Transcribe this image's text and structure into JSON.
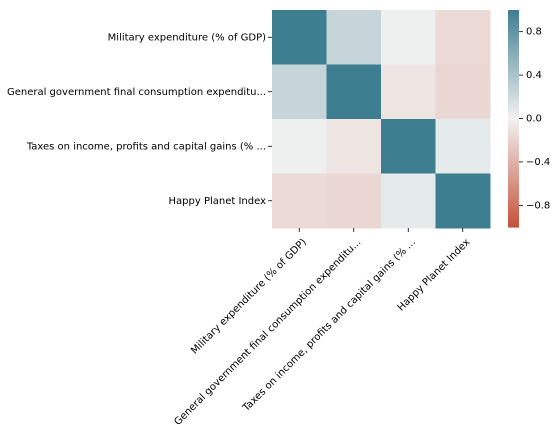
{
  "chart_data": {
    "type": "heatmap",
    "row_labels": [
      "Military expenditure (% of GDP)",
      "General government final consumption expenditu...",
      "Taxes on income, profits and capital gains (% ...",
      "Happy Planet Index"
    ],
    "col_labels": [
      "Military expenditure (% of GDP)",
      "General government final consumption expenditu...",
      "Taxes on income, profits and capital gains (% ...",
      "Happy Planet Index"
    ],
    "values": [
      [
        1.0,
        0.25,
        0.02,
        -0.15
      ],
      [
        0.25,
        1.0,
        -0.08,
        -0.17
      ],
      [
        0.02,
        -0.08,
        1.0,
        0.07
      ],
      [
        -0.15,
        -0.17,
        0.07,
        1.0
      ]
    ],
    "colorbar": {
      "range": [
        -1,
        1
      ],
      "ticks": [
        -0.8,
        -0.4,
        0.0,
        0.4,
        0.8
      ],
      "tick_labels": [
        "−0.8",
        "−0.4",
        "0.0",
        "0.4",
        "0.8"
      ],
      "colors": {
        "negative": "#c4523a",
        "center": "#f2f2f2",
        "positive": "#3e7e91"
      }
    },
    "title": "",
    "xlabel": "",
    "ylabel": ""
  }
}
